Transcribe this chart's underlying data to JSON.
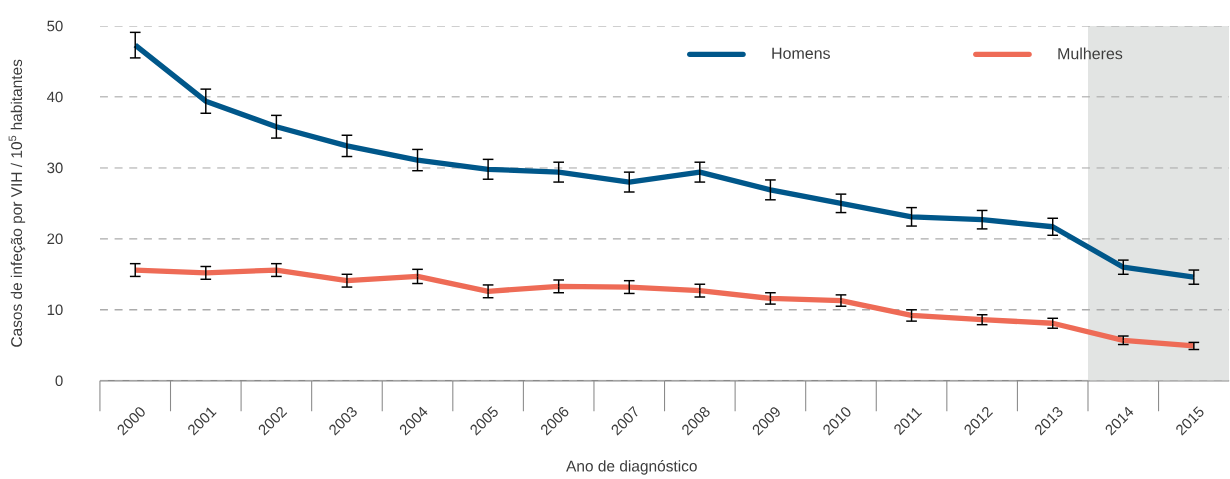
{
  "chart_data": {
    "type": "line",
    "xlabel": "Ano de diagnóstico",
    "ylabel": "Casos de infeção por VIH / 10$^{5}$ habitantes",
    "x": [
      2000,
      2001,
      2002,
      2003,
      2004,
      2005,
      2006,
      2007,
      2008,
      2009,
      2010,
      2011,
      2012,
      2013,
      2014,
      2015
    ],
    "series": [
      {
        "name": "Homens",
        "color": "#00578a",
        "values": [
          47.3,
          39.4,
          35.8,
          33.1,
          31.1,
          29.8,
          29.4,
          28.0,
          29.4,
          26.9,
          25.0,
          23.1,
          22.7,
          21.7,
          16.0,
          14.6
        ],
        "errors": [
          1.8,
          1.7,
          1.6,
          1.5,
          1.5,
          1.4,
          1.4,
          1.4,
          1.4,
          1.4,
          1.3,
          1.3,
          1.3,
          1.2,
          1.0,
          1.0
        ]
      },
      {
        "name": "Mulheres",
        "color": "#ee6b56",
        "values": [
          15.6,
          15.2,
          15.6,
          14.1,
          14.7,
          12.6,
          13.3,
          13.2,
          12.7,
          11.6,
          11.3,
          9.2,
          8.6,
          8.1,
          5.7,
          4.9
        ],
        "errors": [
          0.9,
          0.9,
          0.9,
          0.9,
          1.0,
          0.9,
          0.9,
          0.9,
          0.9,
          0.8,
          0.8,
          0.8,
          0.7,
          0.7,
          0.6,
          0.5
        ]
      }
    ],
    "xlim": [
      1999.5,
      2015.5
    ],
    "xticks": [
      2000,
      2001,
      2002,
      2003,
      2004,
      2005,
      2006,
      2007,
      2008,
      2009,
      2010,
      2011,
      2012,
      2013,
      2014,
      2015
    ],
    "ylim": [
      0,
      50
    ],
    "yticks": [
      0,
      10,
      20,
      30,
      40,
      50
    ],
    "grid": "y",
    "legend": "top right",
    "bands": [
      {
        "axis": "x",
        "from": 2013.5,
        "to": 2015.5,
        "color": "#e2e4e3"
      }
    ]
  }
}
